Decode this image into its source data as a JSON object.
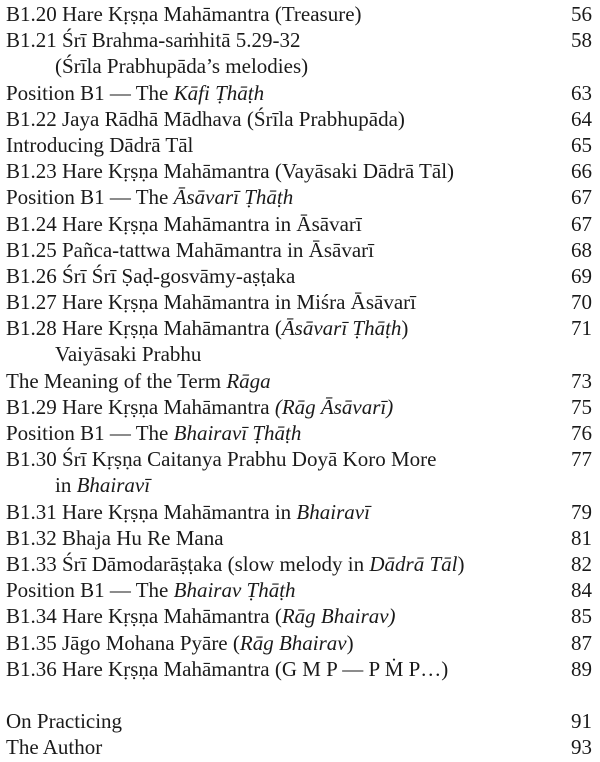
{
  "toc": [
    {
      "parts": [
        {
          "t": "B1.20 Hare Kṛṣṇa Mahāmantra (Treasure)"
        }
      ],
      "page": "56"
    },
    {
      "parts": [
        {
          "t": "B1.21 Śrī Brahma-saṁhitā 5.29-32"
        }
      ],
      "page": "58"
    },
    {
      "parts": [
        {
          "t": "(Śrīla Prabhupāda’s melodies)"
        }
      ],
      "cont": true
    },
    {
      "parts": [
        {
          "t": "Position B1 — The "
        },
        {
          "t": "Kāfi Ṭhāṭh",
          "i": true
        }
      ],
      "page": "63"
    },
    {
      "parts": [
        {
          "t": "B1.22 Jaya Rādhā Mādhava  (Śrīla Prabhupāda)"
        }
      ],
      "page": "64"
    },
    {
      "parts": [
        {
          "t": "Introducing Dādrā Tāl"
        }
      ],
      "page": "65"
    },
    {
      "parts": [
        {
          "t": "B1.23 Hare Kṛṣṇa Mahāmantra (Vayāsaki Dādrā Tāl)"
        }
      ],
      "page": "66"
    },
    {
      "parts": [
        {
          "t": "Position B1 — The "
        },
        {
          "t": "Āsāvarī Ṭhāṭh",
          "i": true
        }
      ],
      "page": "67"
    },
    {
      "parts": [
        {
          "t": "B1.24 Hare Kṛṣṇa Mahāmantra in Āsāvarī"
        }
      ],
      "page": "67"
    },
    {
      "parts": [
        {
          "t": "B1.25 Pañca-tattwa Mahāmantra in Āsāvarī"
        }
      ],
      "page": "68"
    },
    {
      "parts": [
        {
          "t": "B1.26 Śrī Śrī Ṣaḍ-gosvāmy-aṣṭaka"
        }
      ],
      "page": "69"
    },
    {
      "parts": [
        {
          "t": "B1.27 Hare Kṛṣṇa Mahāmantra in Miśra Āsāvarī"
        }
      ],
      "page": "70"
    },
    {
      "parts": [
        {
          "t": "B1.28 Hare Kṛṣṇa Mahāmantra ("
        },
        {
          "t": "Āsāvarī Ṭhāṭh",
          "i": true
        },
        {
          "t": ")"
        }
      ],
      "page": "71"
    },
    {
      "parts": [
        {
          "t": "Vaiyāsaki Prabhu"
        }
      ],
      "cont": true
    },
    {
      "parts": [
        {
          "t": "The Meaning of the Term "
        },
        {
          "t": "Rāga",
          "i": true
        }
      ],
      "page": "73"
    },
    {
      "parts": [
        {
          "t": "B1.29 Hare Kṛṣṇa Mahāmantra "
        },
        {
          "t": "(Rāg Āsāvarī)",
          "i": true
        }
      ],
      "page": "75"
    },
    {
      "parts": [
        {
          "t": "Position B1 — The "
        },
        {
          "t": "Bhairavī Ṭhāṭh",
          "i": true
        }
      ],
      "page": "76"
    },
    {
      "parts": [
        {
          "t": "B1.30 Śrī Kṛṣṇa Caitanya Prabhu Doyā Koro More"
        }
      ],
      "page": "77"
    },
    {
      "parts": [
        {
          "t": "in "
        },
        {
          "t": "Bhairavī",
          "i": true
        }
      ],
      "cont": true
    },
    {
      "parts": [
        {
          "t": "B1.31 Hare Kṛṣṇa Mahāmantra in "
        },
        {
          "t": "Bhairavī",
          "i": true
        }
      ],
      "page": "79"
    },
    {
      "parts": [
        {
          "t": "B1.32 Bhaja Hu Re Mana"
        }
      ],
      "page": "81"
    },
    {
      "parts": [
        {
          "t": "B1.33 Śrī Dāmodarāṣṭaka (slow melody in "
        },
        {
          "t": "Dādrā Tāl",
          "i": true
        },
        {
          "t": ")"
        }
      ],
      "page": "82"
    },
    {
      "parts": [
        {
          "t": "Position B1 — The "
        },
        {
          "t": "Bhairav Ṭhāṭh",
          "i": true
        }
      ],
      "page": "84"
    },
    {
      "parts": [
        {
          "t": "B1.34 Hare Kṛṣṇa Mahāmantra ("
        },
        {
          "t": "Rāg Bhairav)",
          "i": true
        }
      ],
      "page": "85"
    },
    {
      "parts": [
        {
          "t": "B1.35 Jāgo Mohana Pyāre ("
        },
        {
          "t": "Rāg Bhairav",
          "i": true
        },
        {
          "t": ")"
        }
      ],
      "page": "87"
    },
    {
      "parts": [
        {
          "t": "B1.36 Hare Kṛṣṇa Mahāmantra (G M P — P Ṁ P…)"
        }
      ],
      "page": "89"
    },
    {
      "blank": true
    },
    {
      "parts": [
        {
          "t": "On Practicing"
        }
      ],
      "page": "91"
    },
    {
      "parts": [
        {
          "t": "The Author"
        }
      ],
      "page": "93"
    }
  ]
}
